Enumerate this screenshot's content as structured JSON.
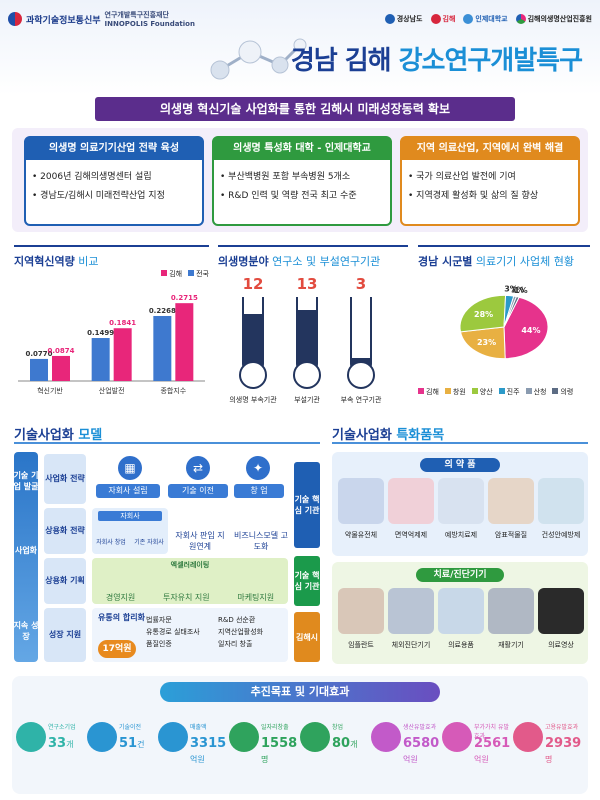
{
  "header": {
    "ministry": "과학기술정보통신부",
    "foundation": "연구개발특구진흥재단",
    "foundation_en": "INNOPOLIS Foundation",
    "partners": [
      "경상남도",
      "김해",
      "인제대학교",
      "김해의생명산업진흥원"
    ],
    "title_part1": "경남 김해 ",
    "title_part2": "강소연구개발특구"
  },
  "banner": "의생명 혁신기술 사업화를 통한 김해시 미래성장동력 확보",
  "pillars": [
    {
      "heading": "의생명 의료기기산업 전략 육성",
      "items": [
        "2006년 김해의생명센터 설립",
        "경남도/김해시 미래전략산업 지정"
      ],
      "color": "#1f5fb3"
    },
    {
      "heading": "의생명 특성화 대학 - 인제대학교",
      "items": [
        "부산백병원 포함 부속병원 5개소",
        "R&D 인력 및 역량 전국 최고 수준"
      ],
      "color": "#2f9a3f"
    },
    {
      "heading": "지역 의료산업, 지역에서 완벽 해결",
      "items": [
        "국가 의료산업 발전에 기여",
        "지역경제 활성화 및 삶의 질 향상"
      ],
      "color": "#e08a1e"
    }
  ],
  "chart1": {
    "title_a": "지역혁신역량",
    "title_b": " 비교",
    "legend": [
      "김해",
      "전국"
    ]
  },
  "chart_data": [
    {
      "type": "bar",
      "title": "지역혁신역량 비교",
      "categories": [
        "혁신기반",
        "산업발전",
        "종합지수"
      ],
      "series": [
        {
          "name": "김해",
          "values": [
            0.0874,
            0.1841,
            0.2715
          ],
          "color": "#e8267a"
        },
        {
          "name": "전국",
          "values": [
            0.077,
            0.1499,
            0.2268
          ],
          "color": "#3e79cf"
        }
      ],
      "xlabel": "",
      "ylabel": "",
      "ylim": [
        0,
        0.3
      ],
      "legend": "top-right"
    },
    {
      "type": "bar",
      "title": "의생명분야 연구소 및 부설연구기관",
      "categories": [
        "의생명 부속기관",
        "부설기관",
        "부속 연구기관"
      ],
      "values": [
        12,
        13,
        3
      ],
      "ylim": [
        0,
        16
      ]
    },
    {
      "type": "pie",
      "title": "경남 시군별 의료기기 사업체 현황",
      "categories": [
        "김해",
        "창원",
        "양산",
        "진주",
        "산청",
        "의령"
      ],
      "values": [
        44,
        23,
        28,
        3,
        1,
        1
      ],
      "colors": [
        "#e6338c",
        "#e8b042",
        "#9cc93e",
        "#2c9ac9",
        "#8a9bb0",
        "#5c6c84"
      ],
      "legend": "bottom"
    }
  ],
  "chart2": {
    "title_a": "의생명분야",
    "title_b": " 연구소 및 부설연구기관"
  },
  "chart3": {
    "title_a": "경남 시군별",
    "title_b": " 의료기기 사업체 현황",
    "slice_labels": [
      "44%",
      "23%",
      "28%",
      "3%",
      "1%",
      "1%"
    ]
  },
  "model": {
    "title_a": "기술사업화",
    "title_b": " 모델",
    "left_stages": [
      "기술 기업 발굴",
      "사업화",
      "지속 성장"
    ],
    "stages": [
      "사업화 전략",
      "상용화 전략",
      "상용화 기획",
      "성장 지원"
    ],
    "row1": [
      "자회사 설립",
      "기술 이전",
      "창 업"
    ],
    "row2_head": "자회사",
    "row2_sub": [
      "자회사 창업",
      "기존 자회사"
    ],
    "row2": [
      "자회사 판입 지원연계",
      "비즈니스모델 고도화"
    ],
    "row3_head": "엑셀러레이팅",
    "row3": [
      "경영지원",
      "투자유치 지원",
      "마케팅지원"
    ],
    "row4_head": "유통의 합리화",
    "row4_val": "17억원",
    "row4_a": [
      "법률자문",
      "유통경로 실태조사",
      "품질인증"
    ],
    "row4_b": [
      "R&D 선순환",
      "지역산업활성화",
      "일자리 창출"
    ],
    "side": [
      "기술 핵심 기관",
      "기술 핵심 기관",
      "김해시"
    ]
  },
  "products": {
    "title_a": "기술사업화",
    "title_b": " 특화품목",
    "group1": "의 약 품",
    "group1_items": [
      "약물유전체",
      "면역억제제",
      "예방치료제",
      "암표적물질",
      "건성안예방제"
    ],
    "group2": "치료/진단기기",
    "group2_items": [
      "임플란트",
      "체외진단기기",
      "의료용품",
      "재활기기",
      "의료영상"
    ]
  },
  "goals": {
    "title": "추진목표 및 기대효과",
    "items": [
      {
        "label": "연구소기업",
        "value": "33",
        "unit": "개",
        "color": "#2fb3a8"
      },
      {
        "label": "기술이전",
        "value": "51",
        "unit": "건",
        "color": "#2a95d2"
      },
      {
        "label": "매출액",
        "value": "3315",
        "unit": "억원",
        "color": "#2a95d2"
      },
      {
        "label": "일자리창출",
        "value": "1558",
        "unit": "명",
        "color": "#2fa35d"
      },
      {
        "label": "창업",
        "value": "80",
        "unit": "개",
        "color": "#2fa35d"
      },
      {
        "label": "생산유발효과",
        "value": "6580",
        "unit": "억원",
        "color": "#c25ac9"
      },
      {
        "label": "부가가치 유발효과",
        "value": "2561",
        "unit": "억원",
        "color": "#d65ab8"
      },
      {
        "label": "고용유발효과",
        "value": "2939",
        "unit": "명",
        "color": "#e25a8a"
      }
    ]
  }
}
